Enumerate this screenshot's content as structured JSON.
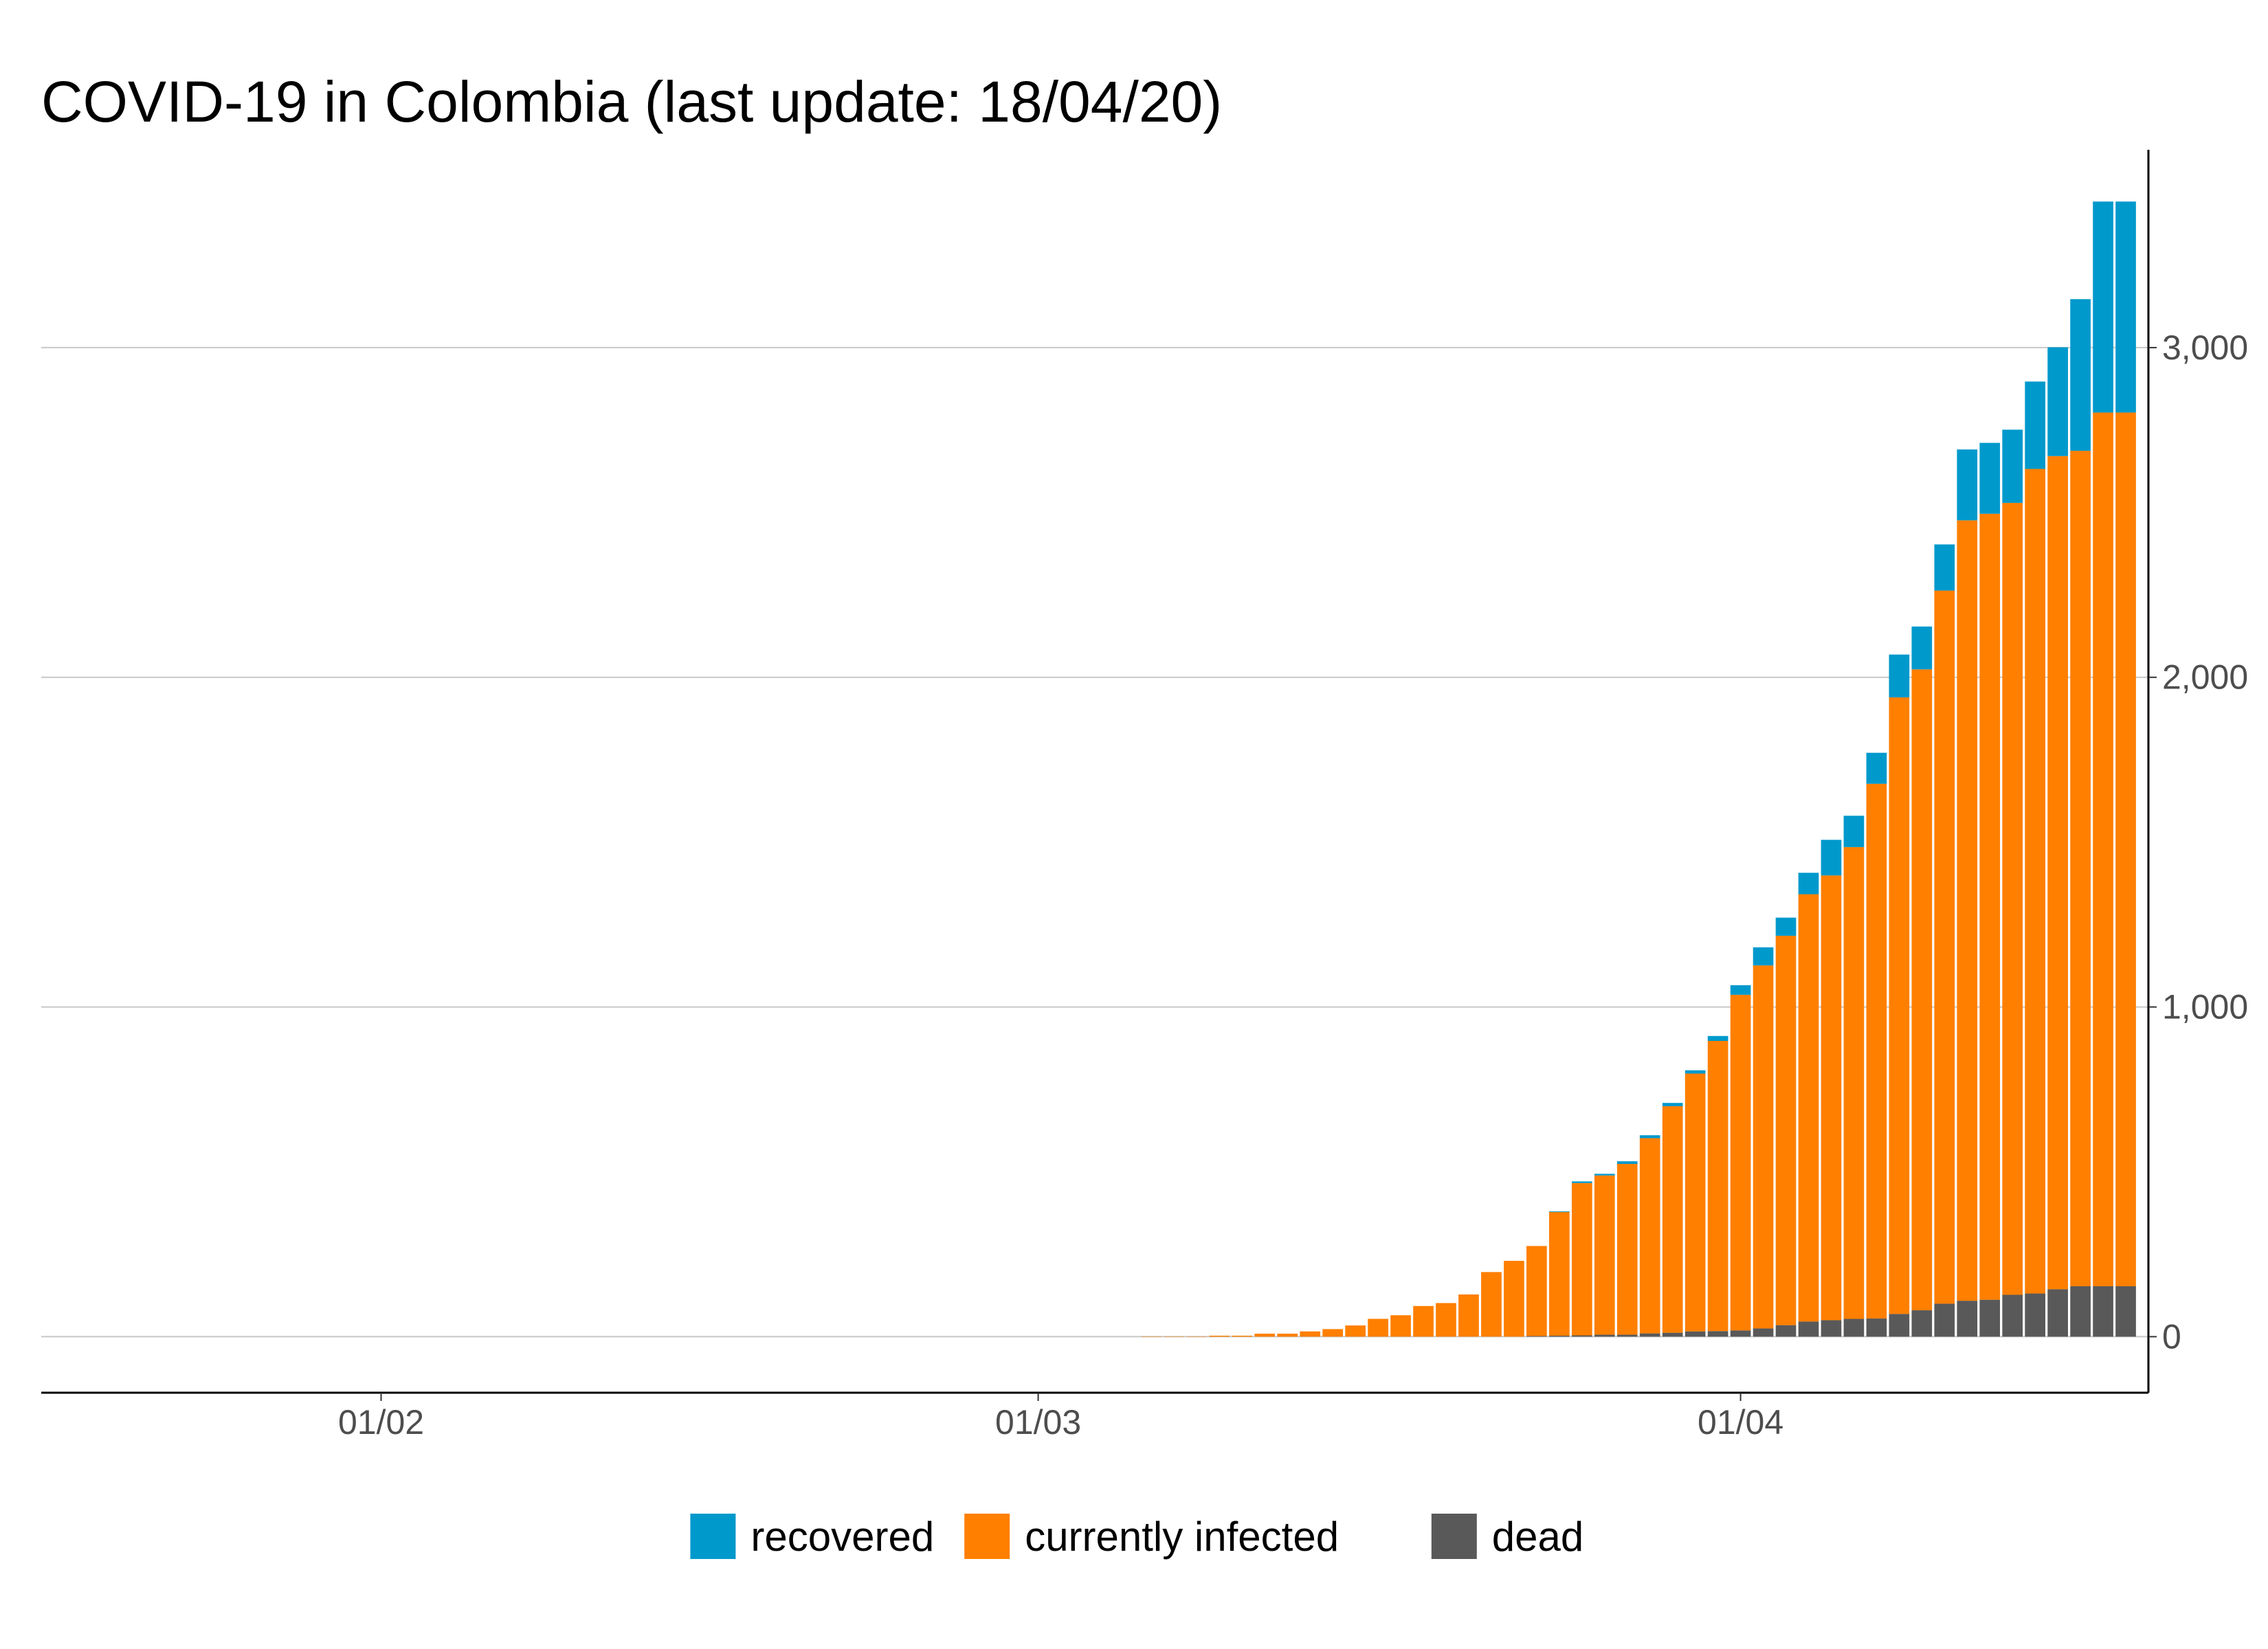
{
  "chart_data": {
    "type": "bar",
    "stacked": true,
    "title": "COVID-19 in Colombia (last update: 18/04/20)",
    "xlabel": "",
    "ylabel": "",
    "x": [
      "06/03",
      "07/03",
      "08/03",
      "09/03",
      "10/03",
      "11/03",
      "12/03",
      "13/03",
      "14/03",
      "15/03",
      "16/03",
      "17/03",
      "18/03",
      "19/03",
      "20/03",
      "21/03",
      "22/03",
      "23/03",
      "24/03",
      "25/03",
      "26/03",
      "27/03",
      "28/03",
      "29/03",
      "30/03",
      "31/03",
      "01/04",
      "02/04",
      "03/04",
      "04/04",
      "05/04",
      "06/04",
      "07/04",
      "08/04",
      "09/04",
      "10/04",
      "11/04",
      "12/04",
      "13/04",
      "14/04",
      "15/04",
      "16/04",
      "17/04",
      "18/04"
    ],
    "xlim": [
      "17/01/20",
      "19/04/20"
    ],
    "ylim": [
      -170,
      3600
    ],
    "y_ticks": [
      0,
      1000,
      2000,
      3000
    ],
    "y_tick_labels": [
      "0",
      "1,000",
      "2,000",
      "3,000"
    ],
    "y_axis_side": "right",
    "x_ticks": [
      "01/02/20",
      "01/03/20",
      "01/04/20"
    ],
    "x_tick_labels": [
      "01/02",
      "01/03",
      "01/04"
    ],
    "grid": "horizontal",
    "legend_position": "bottom",
    "series": [
      {
        "name": "dead",
        "color": "#595959",
        "values": [
          0,
          0,
          0,
          0,
          0,
          0,
          0,
          0,
          0,
          0,
          0,
          0,
          0,
          0,
          0,
          0,
          0,
          2,
          3,
          4,
          6,
          6,
          10,
          12,
          16,
          17,
          19,
          25,
          35,
          46,
          50,
          54,
          55,
          69,
          80,
          100,
          109,
          112,
          127,
          131,
          144,
          153,
          153,
          153
        ]
      },
      {
        "name": "currently infected",
        "color": "#ff7f00",
        "values": [
          1,
          1,
          1,
          3,
          3,
          9,
          9,
          16,
          23,
          34,
          54,
          65,
          93,
          102,
          128,
          196,
          230,
          273,
          375,
          462,
          483,
          518,
          592,
          687,
          782,
          880,
          1018,
          1101,
          1181,
          1296,
          1349,
          1431,
          1622,
          1870,
          1944,
          2163,
          2367,
          2384,
          2402,
          2501,
          2527,
          2534,
          2650,
          2650
        ]
      },
      {
        "name": "recovered",
        "color": "#0099cc",
        "values": [
          0,
          0,
          0,
          0,
          0,
          0,
          0,
          0,
          0,
          0,
          0,
          0,
          0,
          0,
          0,
          0,
          0,
          0,
          2,
          5,
          5,
          8,
          9,
          10,
          10,
          15,
          29,
          55,
          55,
          65,
          108,
          95,
          94,
          130,
          130,
          140,
          215,
          215,
          222,
          265,
          330,
          460,
          640,
          640
        ]
      }
    ]
  }
}
